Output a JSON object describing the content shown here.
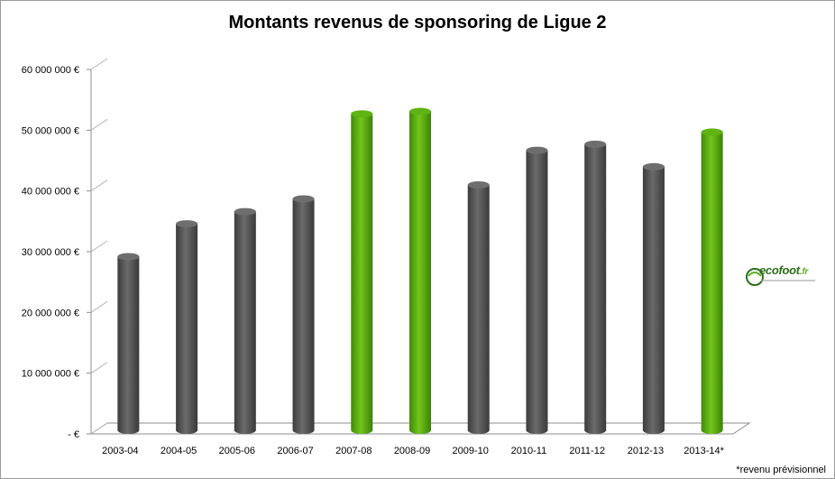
{
  "chart_data": {
    "type": "bar",
    "title": "Montants revenus de sponsoring de Ligue 2",
    "categories": [
      "2003-04",
      "2004-05",
      "2005-06",
      "2006-07",
      "2007-08",
      "2008-09",
      "2009-10",
      "2010-11",
      "2011-12",
      "2012-13",
      "2013-14*"
    ],
    "values": [
      28300000,
      33700000,
      35700000,
      37800000,
      51800000,
      52200000,
      40100000,
      45800000,
      46800000,
      43100000,
      48800000
    ],
    "highlight": [
      false,
      false,
      false,
      false,
      true,
      true,
      false,
      false,
      false,
      false,
      true
    ],
    "ylim": [
      0,
      60000000
    ],
    "yticks": [
      {
        "value": 0,
        "label": "-  €"
      },
      {
        "value": 10000000,
        "label": "10 000 000 €"
      },
      {
        "value": 20000000,
        "label": "20 000 000 €"
      },
      {
        "value": 30000000,
        "label": "30 000 000 €"
      },
      {
        "value": 40000000,
        "label": "40 000 000 €"
      },
      {
        "value": 50000000,
        "label": "50 000 000 €"
      },
      {
        "value": 60000000,
        "label": "60 000 000 €"
      }
    ],
    "grid": false,
    "colors": {
      "normal": "#5a5a5a",
      "highlight": "#5fb312"
    },
    "footnote": "*revenu prévisionnel"
  },
  "logo": {
    "word": "ecofoot",
    "tld": ".fr"
  }
}
